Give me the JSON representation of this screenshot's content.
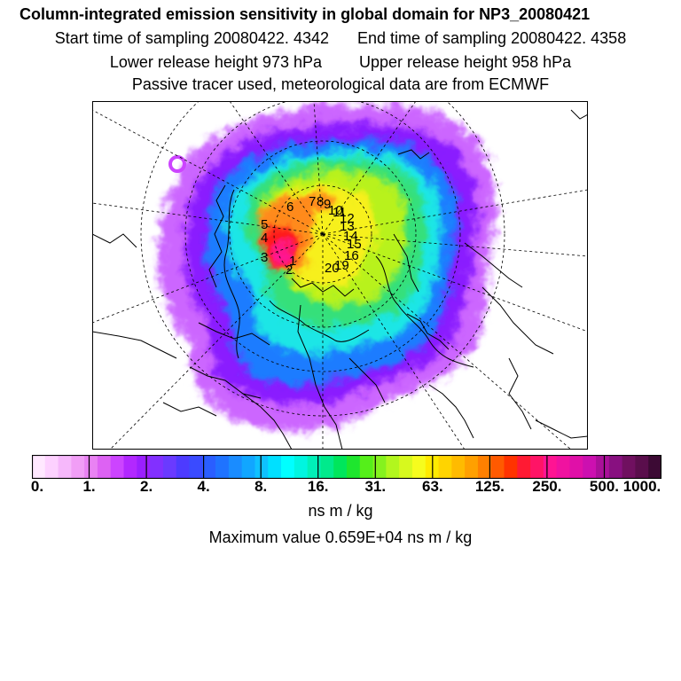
{
  "header": {
    "title": "Column-integrated emission sensitivity in global domain for NP3_20080421",
    "start_time": "Start time of sampling 20080422.  4342",
    "end_time": "End time of sampling 20080422.  4358",
    "lower_release": "Lower release height  973 hPa",
    "upper_release": "Upper release height  958 hPa",
    "tracer_info": "Passive tracer used, meteorological data are from ECMWF"
  },
  "map": {
    "projection": "north-polar-stereographic",
    "track_labels": [
      "1",
      "2",
      "3",
      "4",
      "5",
      "6",
      "7",
      "8",
      "9",
      "10",
      "11",
      "12",
      "13",
      "14",
      "15",
      "16",
      "19",
      "20"
    ],
    "colors": {
      "low_violet": "#cc66ff",
      "violet": "#8a1fff",
      "blue": "#1d7cff",
      "cyan": "#1ee6e6",
      "green": "#35e07a",
      "lime": "#b8f21e",
      "yellow": "#f7f01e",
      "orange": "#ff8a1a",
      "red": "#ff1a1a",
      "magenta": "#ff1493"
    }
  },
  "colorbar": {
    "colors": [
      "#ffe8ff",
      "#fdd1ff",
      "#f6b8fb",
      "#f19ef6",
      "#e982f3",
      "#dd62f3",
      "#cc44ff",
      "#b228ff",
      "#9b1fff",
      "#8230ff",
      "#6a3aff",
      "#4d3bff",
      "#3a4bff",
      "#2a5eff",
      "#1f73ff",
      "#1a8cff",
      "#11a6ff",
      "#0fc1ff",
      "#00e0ff",
      "#00ffff",
      "#00f5e0",
      "#00f0b8",
      "#00ea8c",
      "#00e65c",
      "#1ee62e",
      "#55ef1a",
      "#85f21e",
      "#b2f61e",
      "#d7f91e",
      "#f6fc1e",
      "#ffea00",
      "#ffd400",
      "#ffbb00",
      "#ffa000",
      "#ff8000",
      "#ff5a00",
      "#ff3300",
      "#ff1a33",
      "#ff1466",
      "#ff1493",
      "#f012a0",
      "#e010a8",
      "#cc10b0",
      "#aa1099",
      "#881080",
      "#701060",
      "#5a0e4c",
      "#3c0a34"
    ],
    "tick_labels": [
      "0.",
      "1.",
      "2.",
      "4.",
      "8.",
      "16.",
      "31.",
      "63.",
      "125.",
      "250.",
      "500.",
      "1000."
    ],
    "unit": "ns m / kg"
  },
  "max_value": "Maximum value  0.659E+04 ns m / kg"
}
